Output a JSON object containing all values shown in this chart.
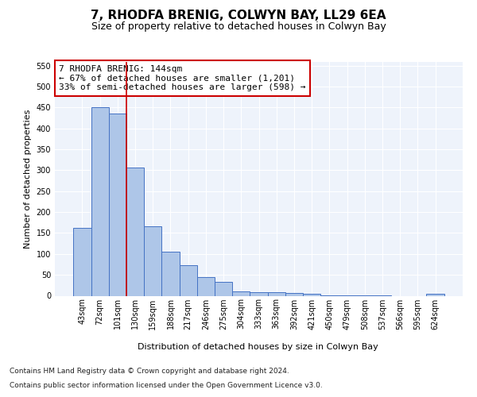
{
  "title": "7, RHODFA BRENIG, COLWYN BAY, LL29 6EA",
  "subtitle": "Size of property relative to detached houses in Colwyn Bay",
  "xlabel": "Distribution of detached houses by size in Colwyn Bay",
  "ylabel": "Number of detached properties",
  "categories": [
    "43sqm",
    "72sqm",
    "101sqm",
    "130sqm",
    "159sqm",
    "188sqm",
    "217sqm",
    "246sqm",
    "275sqm",
    "304sqm",
    "333sqm",
    "363sqm",
    "392sqm",
    "421sqm",
    "450sqm",
    "479sqm",
    "508sqm",
    "537sqm",
    "566sqm",
    "595sqm",
    "624sqm"
  ],
  "values": [
    163,
    450,
    436,
    307,
    167,
    106,
    74,
    45,
    33,
    11,
    8,
    8,
    6,
    5,
    1,
    1,
    1,
    1,
    0,
    0,
    5
  ],
  "bar_color": "#aec6e8",
  "bar_edge_color": "#4472c4",
  "background_color": "#eef3fb",
  "grid_color": "#ffffff",
  "vline_x_index": 3,
  "vline_color": "#cc0000",
  "ylim": [
    0,
    560
  ],
  "yticks": [
    0,
    50,
    100,
    150,
    200,
    250,
    300,
    350,
    400,
    450,
    500,
    550
  ],
  "annotation_box_text": "7 RHODFA BRENIG: 144sqm\n← 67% of detached houses are smaller (1,201)\n33% of semi-detached houses are larger (598) →",
  "footer_line1": "Contains HM Land Registry data © Crown copyright and database right 2024.",
  "footer_line2": "Contains public sector information licensed under the Open Government Licence v3.0.",
  "title_fontsize": 11,
  "subtitle_fontsize": 9,
  "axis_label_fontsize": 8,
  "tick_fontsize": 7,
  "annotation_fontsize": 8,
  "footer_fontsize": 6.5
}
